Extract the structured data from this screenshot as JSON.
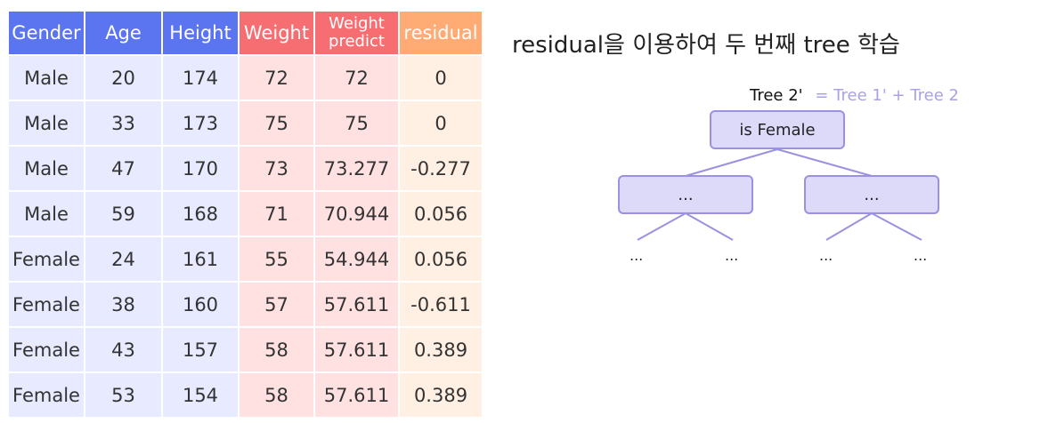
{
  "table": {
    "headers": [
      {
        "label": "Gender",
        "color": "#5b74ef"
      },
      {
        "label": "Age",
        "color": "#5b74ef"
      },
      {
        "label": "Height",
        "color": "#5b74ef"
      },
      {
        "label": "Weight",
        "color": "#f66d72"
      },
      {
        "label_line1": "Weight",
        "label_line2": "predict",
        "color": "#f66d72"
      },
      {
        "label": "residual",
        "color": "#ffab73"
      }
    ],
    "rows": [
      [
        "Male",
        "20",
        "174",
        "72",
        "72",
        "0"
      ],
      [
        "Male",
        "33",
        "173",
        "75",
        "75",
        "0"
      ],
      [
        "Male",
        "47",
        "170",
        "73",
        "73.277",
        "-0.277"
      ],
      [
        "Male",
        "59",
        "168",
        "71",
        "70.944",
        "0.056"
      ],
      [
        "Female",
        "24",
        "161",
        "55",
        "54.944",
        "0.056"
      ],
      [
        "Female",
        "38",
        "160",
        "57",
        "57.611",
        "-0.611"
      ],
      [
        "Female",
        "43",
        "157",
        "58",
        "57.611",
        "0.389"
      ],
      [
        "Female",
        "53",
        "154",
        "58",
        "57.611",
        "0.389"
      ]
    ]
  },
  "diagram": {
    "title": "residual을 이용하여 두 번째 tree 학습",
    "tree_label": "Tree 2'",
    "tree_equation": "= Tree 1' + Tree 2",
    "root": "is Female",
    "children": [
      "...",
      "..."
    ],
    "leaves": [
      "...",
      "...",
      "...",
      "..."
    ]
  }
}
